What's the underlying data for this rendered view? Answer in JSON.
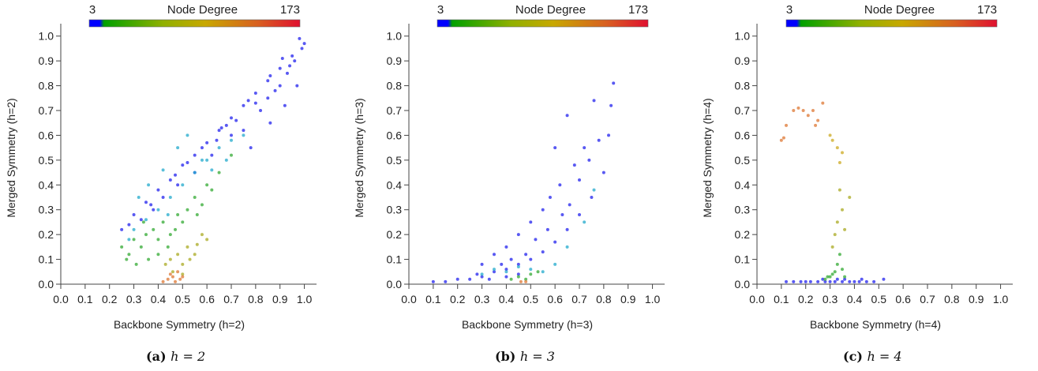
{
  "chart_data": [
    {
      "type": "scatter",
      "caption_label": "(a)",
      "caption_math": "h = 2",
      "xlabel": "Backbone Symmetry (h=2)",
      "ylabel": "Merged Symmetry (h=2)",
      "xlim": [
        0.0,
        1.05
      ],
      "ylim": [
        0.0,
        1.05
      ],
      "xticks": [
        "0.0",
        "0.1",
        "0.2",
        "0.3",
        "0.4",
        "0.5",
        "0.6",
        "0.7",
        "0.8",
        "0.9",
        "1.0"
      ],
      "yticks": [
        "0.0",
        "0.1",
        "0.2",
        "0.3",
        "0.4",
        "0.5",
        "0.6",
        "0.7",
        "0.8",
        "0.9",
        "1.0"
      ],
      "colorbar": {
        "title": "Node Degree",
        "min_label": "3",
        "max_label": "173"
      },
      "grid": false,
      "series": [
        {
          "color": "#2222ee",
          "points": [
            [
              0.3,
              0.28
            ],
            [
              0.35,
              0.33
            ],
            [
              0.4,
              0.38
            ],
            [
              0.45,
              0.42
            ],
            [
              0.5,
              0.48
            ],
            [
              0.55,
              0.52
            ],
            [
              0.6,
              0.57
            ],
            [
              0.65,
              0.62
            ],
            [
              0.7,
              0.67
            ],
            [
              0.75,
              0.72
            ],
            [
              0.8,
              0.77
            ],
            [
              0.85,
              0.82
            ],
            [
              0.9,
              0.87
            ],
            [
              0.95,
              0.92
            ],
            [
              1.0,
              0.97
            ],
            [
              0.98,
              0.99
            ],
            [
              0.93,
              0.85
            ],
            [
              0.88,
              0.78
            ],
            [
              0.82,
              0.7
            ],
            [
              0.75,
              0.62
            ],
            [
              0.97,
              0.8
            ],
            [
              0.92,
              0.72
            ],
            [
              0.86,
              0.65
            ],
            [
              0.78,
              0.55
            ],
            [
              0.96,
              0.9
            ],
            [
              0.99,
              0.95
            ],
            [
              0.85,
              0.75
            ],
            [
              0.7,
              0.6
            ],
            [
              0.62,
              0.52
            ],
            [
              0.55,
              0.45
            ],
            [
              0.48,
              0.4
            ],
            [
              0.42,
              0.35
            ],
            [
              0.38,
              0.3
            ],
            [
              0.33,
              0.26
            ],
            [
              0.28,
              0.24
            ],
            [
              0.25,
              0.22
            ],
            [
              0.68,
              0.64
            ],
            [
              0.72,
              0.66
            ],
            [
              0.58,
              0.55
            ],
            [
              0.52,
              0.49
            ],
            [
              0.9,
              0.8
            ],
            [
              0.94,
              0.88
            ],
            [
              0.8,
              0.73
            ],
            [
              0.64,
              0.58
            ],
            [
              0.47,
              0.44
            ],
            [
              0.37,
              0.32
            ],
            [
              0.91,
              0.91
            ],
            [
              0.86,
              0.84
            ],
            [
              0.77,
              0.74
            ],
            [
              0.66,
              0.63
            ]
          ]
        },
        {
          "color": "#22aacc",
          "points": [
            [
              0.3,
              0.22
            ],
            [
              0.35,
              0.26
            ],
            [
              0.4,
              0.3
            ],
            [
              0.45,
              0.35
            ],
            [
              0.5,
              0.4
            ],
            [
              0.55,
              0.45
            ],
            [
              0.6,
              0.5
            ],
            [
              0.65,
              0.55
            ],
            [
              0.7,
              0.58
            ],
            [
              0.75,
              0.6
            ],
            [
              0.36,
              0.4
            ],
            [
              0.42,
              0.46
            ],
            [
              0.48,
              0.55
            ],
            [
              0.32,
              0.35
            ],
            [
              0.52,
              0.6
            ],
            [
              0.58,
              0.5
            ],
            [
              0.62,
              0.46
            ],
            [
              0.68,
              0.5
            ],
            [
              0.28,
              0.18
            ],
            [
              0.44,
              0.28
            ]
          ]
        },
        {
          "color": "#33aa33",
          "points": [
            [
              0.25,
              0.15
            ],
            [
              0.28,
              0.12
            ],
            [
              0.3,
              0.18
            ],
            [
              0.33,
              0.15
            ],
            [
              0.35,
              0.2
            ],
            [
              0.38,
              0.22
            ],
            [
              0.4,
              0.18
            ],
            [
              0.42,
              0.25
            ],
            [
              0.45,
              0.2
            ],
            [
              0.48,
              0.28
            ],
            [
              0.5,
              0.25
            ],
            [
              0.52,
              0.3
            ],
            [
              0.55,
              0.35
            ],
            [
              0.58,
              0.32
            ],
            [
              0.6,
              0.4
            ],
            [
              0.65,
              0.45
            ],
            [
              0.7,
              0.52
            ],
            [
              0.36,
              0.1
            ],
            [
              0.31,
              0.08
            ],
            [
              0.27,
              0.1
            ],
            [
              0.44,
              0.15
            ],
            [
              0.47,
              0.22
            ],
            [
              0.56,
              0.28
            ],
            [
              0.62,
              0.38
            ],
            [
              0.34,
              0.25
            ],
            [
              0.4,
              0.12
            ]
          ]
        },
        {
          "color": "#aaaa22",
          "points": [
            [
              0.45,
              0.1
            ],
            [
              0.48,
              0.12
            ],
            [
              0.5,
              0.08
            ],
            [
              0.52,
              0.15
            ],
            [
              0.55,
              0.12
            ],
            [
              0.58,
              0.2
            ],
            [
              0.6,
              0.18
            ],
            [
              0.46,
              0.05
            ],
            [
              0.5,
              0.04
            ],
            [
              0.43,
              0.08
            ],
            [
              0.53,
              0.1
            ],
            [
              0.56,
              0.16
            ]
          ]
        },
        {
          "color": "#dd7733",
          "points": [
            [
              0.44,
              0.02
            ],
            [
              0.46,
              0.03
            ],
            [
              0.47,
              0.01
            ],
            [
              0.49,
              0.02
            ],
            [
              0.45,
              0.04
            ],
            [
              0.48,
              0.05
            ],
            [
              0.42,
              0.01
            ],
            [
              0.5,
              0.03
            ]
          ]
        }
      ]
    },
    {
      "type": "scatter",
      "caption_label": "(b)",
      "caption_math": "h = 3",
      "xlabel": "Backbone Symmetry (h=3)",
      "ylabel": "Merged Symmetry (h=3)",
      "xlim": [
        0.0,
        1.05
      ],
      "ylim": [
        0.0,
        1.05
      ],
      "xticks": [
        "0.0",
        "0.1",
        "0.2",
        "0.3",
        "0.4",
        "0.5",
        "0.6",
        "0.7",
        "0.8",
        "0.9",
        "1.0"
      ],
      "yticks": [
        "0.0",
        "0.1",
        "0.2",
        "0.3",
        "0.4",
        "0.5",
        "0.6",
        "0.7",
        "0.8",
        "0.9",
        "1.0"
      ],
      "colorbar": {
        "title": "Node Degree",
        "min_label": "3",
        "max_label": "173"
      },
      "grid": false,
      "series": [
        {
          "color": "#2222ee",
          "points": [
            [
              0.1,
              0.01
            ],
            [
              0.15,
              0.01
            ],
            [
              0.2,
              0.02
            ],
            [
              0.25,
              0.02
            ],
            [
              0.3,
              0.03
            ],
            [
              0.35,
              0.05
            ],
            [
              0.4,
              0.06
            ],
            [
              0.45,
              0.08
            ],
            [
              0.5,
              0.1
            ],
            [
              0.55,
              0.13
            ],
            [
              0.6,
              0.17
            ],
            [
              0.65,
              0.22
            ],
            [
              0.7,
              0.28
            ],
            [
              0.75,
              0.35
            ],
            [
              0.8,
              0.45
            ],
            [
              0.84,
              0.81
            ],
            [
              0.83,
              0.72
            ],
            [
              0.76,
              0.74
            ],
            [
              0.72,
              0.55
            ],
            [
              0.68,
              0.48
            ],
            [
              0.62,
              0.4
            ],
            [
              0.58,
              0.35
            ],
            [
              0.55,
              0.3
            ],
            [
              0.5,
              0.25
            ],
            [
              0.45,
              0.2
            ],
            [
              0.4,
              0.15
            ],
            [
              0.35,
              0.12
            ],
            [
              0.3,
              0.08
            ],
            [
              0.42,
              0.1
            ],
            [
              0.38,
              0.08
            ],
            [
              0.48,
              0.12
            ],
            [
              0.52,
              0.18
            ],
            [
              0.57,
              0.22
            ],
            [
              0.63,
              0.28
            ],
            [
              0.66,
              0.32
            ],
            [
              0.7,
              0.42
            ],
            [
              0.74,
              0.5
            ],
            [
              0.78,
              0.58
            ],
            [
              0.82,
              0.6
            ],
            [
              0.6,
              0.55
            ],
            [
              0.65,
              0.68
            ],
            [
              0.45,
              0.04
            ],
            [
              0.33,
              0.02
            ],
            [
              0.28,
              0.04
            ],
            [
              0.4,
              0.03
            ]
          ]
        },
        {
          "color": "#22aacc",
          "points": [
            [
              0.3,
              0.04
            ],
            [
              0.35,
              0.06
            ],
            [
              0.4,
              0.05
            ],
            [
              0.45,
              0.07
            ],
            [
              0.5,
              0.06
            ],
            [
              0.55,
              0.05
            ],
            [
              0.6,
              0.08
            ],
            [
              0.65,
              0.15
            ],
            [
              0.72,
              0.25
            ],
            [
              0.76,
              0.38
            ]
          ]
        },
        {
          "color": "#33aa33",
          "points": [
            [
              0.45,
              0.03
            ],
            [
              0.5,
              0.04
            ],
            [
              0.48,
              0.02
            ],
            [
              0.53,
              0.05
            ],
            [
              0.42,
              0.02
            ]
          ]
        },
        {
          "color": "#dd7733",
          "points": [
            [
              0.46,
              0.01
            ],
            [
              0.48,
              0.01
            ]
          ]
        }
      ]
    },
    {
      "type": "scatter",
      "caption_label": "(c)",
      "caption_math": "h = 4",
      "xlabel": "Backbone Symmetry (h=4)",
      "ylabel": "Merged Symmetry (h=4)",
      "xlim": [
        0.0,
        1.05
      ],
      "ylim": [
        0.0,
        1.05
      ],
      "xticks": [
        "0.0",
        "0.1",
        "0.2",
        "0.3",
        "0.4",
        "0.5",
        "0.6",
        "0.7",
        "0.8",
        "0.9",
        "1.0"
      ],
      "yticks": [
        "0.0",
        "0.1",
        "0.2",
        "0.3",
        "0.4",
        "0.5",
        "0.6",
        "0.7",
        "0.8",
        "0.9",
        "1.0"
      ],
      "colorbar": {
        "title": "Node Degree",
        "min_label": "3",
        "max_label": "173"
      },
      "grid": false,
      "series": [
        {
          "color": "#2222ee",
          "points": [
            [
              0.12,
              0.01
            ],
            [
              0.15,
              0.01
            ],
            [
              0.18,
              0.01
            ],
            [
              0.2,
              0.01
            ],
            [
              0.22,
              0.01
            ],
            [
              0.25,
              0.01
            ],
            [
              0.28,
              0.01
            ],
            [
              0.3,
              0.01
            ],
            [
              0.32,
              0.01
            ],
            [
              0.35,
              0.01
            ],
            [
              0.38,
              0.01
            ],
            [
              0.4,
              0.01
            ],
            [
              0.42,
              0.01
            ],
            [
              0.45,
              0.01
            ],
            [
              0.48,
              0.01
            ],
            [
              0.52,
              0.02
            ],
            [
              0.36,
              0.02
            ],
            [
              0.33,
              0.02
            ],
            [
              0.27,
              0.02
            ],
            [
              0.43,
              0.02
            ]
          ]
        },
        {
          "color": "#33aa33",
          "points": [
            [
              0.28,
              0.02
            ],
            [
              0.3,
              0.03
            ],
            [
              0.32,
              0.05
            ],
            [
              0.33,
              0.08
            ],
            [
              0.34,
              0.12
            ],
            [
              0.35,
              0.06
            ],
            [
              0.31,
              0.04
            ],
            [
              0.36,
              0.03
            ],
            [
              0.29,
              0.03
            ]
          ]
        },
        {
          "color": "#aaaa22",
          "points": [
            [
              0.32,
              0.2
            ],
            [
              0.33,
              0.25
            ],
            [
              0.34,
              0.38
            ],
            [
              0.35,
              0.3
            ],
            [
              0.31,
              0.15
            ],
            [
              0.38,
              0.35
            ],
            [
              0.36,
              0.22
            ]
          ]
        },
        {
          "color": "#ccaa22",
          "points": [
            [
              0.3,
              0.6
            ],
            [
              0.33,
              0.55
            ],
            [
              0.34,
              0.49
            ],
            [
              0.35,
              0.53
            ],
            [
              0.31,
              0.58
            ]
          ]
        },
        {
          "color": "#dd7733",
          "points": [
            [
              0.1,
              0.58
            ],
            [
              0.11,
              0.59
            ],
            [
              0.12,
              0.64
            ],
            [
              0.15,
              0.7
            ],
            [
              0.17,
              0.71
            ],
            [
              0.19,
              0.7
            ],
            [
              0.21,
              0.68
            ],
            [
              0.23,
              0.7
            ],
            [
              0.25,
              0.66
            ],
            [
              0.27,
              0.73
            ],
            [
              0.24,
              0.64
            ]
          ]
        }
      ]
    }
  ]
}
